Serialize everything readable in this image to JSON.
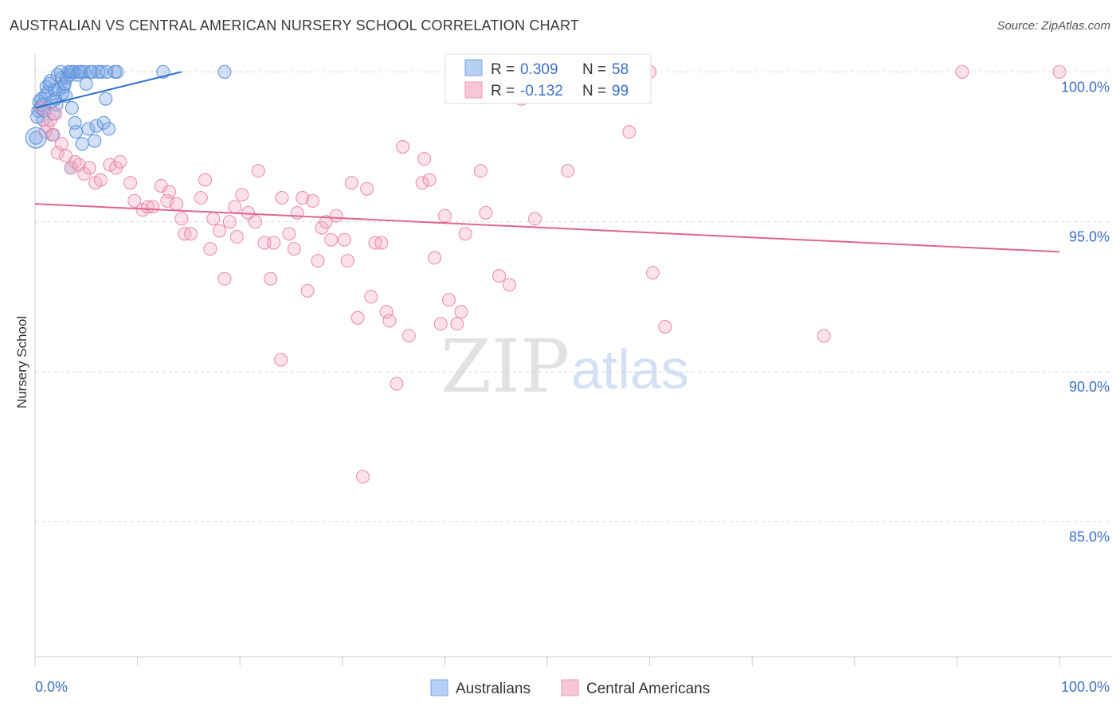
{
  "title": "AUSTRALIAN VS CENTRAL AMERICAN NURSERY SCHOOL CORRELATION CHART",
  "source": "Source: ZipAtlas.com",
  "watermark": {
    "zip": "ZIP",
    "atlas": "atlas"
  },
  "legend_box": {
    "rows": [
      {
        "r_label": "R = ",
        "r_value": "0.309",
        "n_label": "N = ",
        "n_value": "58"
      },
      {
        "r_label": "R = ",
        "r_value": "-0.132",
        "n_label": "N = ",
        "n_value": "99"
      }
    ]
  },
  "chart_data": {
    "type": "scatter",
    "title": "AUSTRALIAN VS CENTRAL AMERICAN NURSERY SCHOOL CORRELATION CHART",
    "xlabel": "",
    "ylabel": "Nursery School",
    "xlim": [
      0,
      100
    ],
    "ylim": [
      80.5,
      100.3
    ],
    "x_tick_labels": [
      {
        "value": 0,
        "label": "0.0%"
      },
      {
        "value": 100,
        "label": "100.0%"
      }
    ],
    "y_tick_labels": [
      {
        "value": 100,
        "label": "100.0%"
      },
      {
        "value": 95,
        "label": "95.0%"
      },
      {
        "value": 90,
        "label": "90.0%"
      },
      {
        "value": 85,
        "label": "85.0%"
      }
    ],
    "grid": true,
    "legend_position": "bottom-center",
    "series": [
      {
        "name": "Australians",
        "color": "#7aa6e6",
        "stroke": "#5b8fd9",
        "trend_color": "#2a6dd0",
        "trend": {
          "x": [
            0,
            14.3
          ],
          "y": [
            98.8,
            100
          ]
        },
        "points": [
          [
            0.1,
            97.8
          ],
          [
            0.2,
            98.5
          ],
          [
            0.3,
            98.7
          ],
          [
            0.4,
            99.0
          ],
          [
            0.5,
            98.8
          ],
          [
            0.6,
            99.1
          ],
          [
            0.7,
            98.9
          ],
          [
            0.8,
            98.4
          ],
          [
            0.9,
            98.7
          ],
          [
            1.0,
            99.2
          ],
          [
            1.1,
            99.5
          ],
          [
            1.2,
            99.3
          ],
          [
            1.4,
            99.6
          ],
          [
            1.5,
            99.7
          ],
          [
            1.6,
            99.0
          ],
          [
            1.7,
            97.9
          ],
          [
            1.8,
            98.6
          ],
          [
            1.9,
            99.4
          ],
          [
            2.0,
            99.1
          ],
          [
            2.1,
            98.9
          ],
          [
            2.2,
            99.9
          ],
          [
            2.3,
            99.4
          ],
          [
            2.5,
            100.0
          ],
          [
            2.6,
            99.8
          ],
          [
            2.7,
            99.3
          ],
          [
            2.8,
            99.5
          ],
          [
            2.9,
            99.6
          ],
          [
            3.0,
            99.2
          ],
          [
            3.1,
            99.8
          ],
          [
            3.3,
            100.0
          ],
          [
            3.4,
            99.9
          ],
          [
            3.5,
            100.0
          ],
          [
            3.6,
            98.8
          ],
          [
            3.8,
            100.0
          ],
          [
            3.9,
            98.3
          ],
          [
            4.0,
            98.0
          ],
          [
            4.1,
            99.9
          ],
          [
            4.3,
            100.0
          ],
          [
            4.5,
            100.0
          ],
          [
            4.6,
            97.6
          ],
          [
            4.8,
            100.0
          ],
          [
            5.0,
            99.6
          ],
          [
            5.2,
            98.1
          ],
          [
            5.4,
            100.0
          ],
          [
            5.6,
            100.0
          ],
          [
            5.8,
            97.7
          ],
          [
            6.0,
            98.2
          ],
          [
            6.2,
            100.0
          ],
          [
            6.5,
            100.0
          ],
          [
            6.7,
            98.3
          ],
          [
            6.9,
            99.1
          ],
          [
            7.0,
            100.0
          ],
          [
            7.2,
            98.1
          ],
          [
            7.8,
            100.0
          ],
          [
            8.0,
            100.0
          ],
          [
            3.5,
            96.8
          ],
          [
            12.5,
            100.0
          ],
          [
            18.5,
            100.0
          ]
        ]
      },
      {
        "name": "Central Americans",
        "color": "#f4a9c0",
        "stroke": "#e98aa9",
        "trend_color": "#e0658e",
        "trend": {
          "x": [
            0,
            100
          ],
          "y": [
            95.6,
            94.0
          ]
        },
        "points": [
          [
            0.7,
            98.8
          ],
          [
            1.2,
            98.2
          ],
          [
            1.5,
            98.4
          ],
          [
            1.8,
            97.9
          ],
          [
            2.2,
            97.3
          ],
          [
            2.6,
            97.6
          ],
          [
            3.0,
            97.2
          ],
          [
            3.5,
            96.8
          ],
          [
            3.9,
            97.0
          ],
          [
            4.3,
            96.9
          ],
          [
            4.8,
            96.6
          ],
          [
            5.3,
            96.8
          ],
          [
            5.9,
            96.3
          ],
          [
            6.4,
            96.4
          ],
          [
            7.3,
            96.9
          ],
          [
            7.9,
            96.8
          ],
          [
            8.3,
            97.0
          ],
          [
            9.3,
            96.3
          ],
          [
            9.7,
            95.7
          ],
          [
            10.5,
            95.4
          ],
          [
            11.0,
            95.5
          ],
          [
            11.5,
            95.5
          ],
          [
            12.3,
            96.2
          ],
          [
            12.9,
            95.7
          ],
          [
            13.1,
            96.0
          ],
          [
            13.8,
            95.6
          ],
          [
            14.3,
            95.1
          ],
          [
            14.6,
            94.6
          ],
          [
            15.2,
            94.6
          ],
          [
            16.2,
            95.8
          ],
          [
            16.6,
            96.4
          ],
          [
            17.1,
            94.1
          ],
          [
            17.4,
            95.1
          ],
          [
            18.0,
            94.7
          ],
          [
            18.5,
            93.1
          ],
          [
            19.0,
            95.0
          ],
          [
            19.5,
            95.5
          ],
          [
            19.7,
            94.5
          ],
          [
            20.2,
            95.9
          ],
          [
            20.8,
            95.3
          ],
          [
            21.5,
            95.0
          ],
          [
            21.8,
            96.7
          ],
          [
            22.4,
            94.3
          ],
          [
            23.0,
            93.1
          ],
          [
            23.3,
            94.3
          ],
          [
            24.1,
            95.8
          ],
          [
            24.8,
            94.6
          ],
          [
            25.3,
            94.1
          ],
          [
            25.6,
            95.3
          ],
          [
            26.1,
            95.8
          ],
          [
            26.6,
            92.7
          ],
          [
            27.1,
            95.7
          ],
          [
            27.6,
            93.7
          ],
          [
            28.0,
            94.8
          ],
          [
            28.4,
            95.0
          ],
          [
            28.9,
            94.4
          ],
          [
            29.4,
            95.2
          ],
          [
            30.2,
            94.4
          ],
          [
            30.5,
            93.7
          ],
          [
            30.9,
            96.3
          ],
          [
            31.5,
            91.8
          ],
          [
            32.4,
            96.1
          ],
          [
            32.8,
            92.5
          ],
          [
            33.2,
            94.3
          ],
          [
            33.8,
            94.3
          ],
          [
            34.3,
            92.0
          ],
          [
            34.6,
            91.7
          ],
          [
            35.3,
            89.6
          ],
          [
            35.9,
            97.5
          ],
          [
            36.5,
            91.2
          ],
          [
            37.8,
            96.3
          ],
          [
            38.0,
            97.1
          ],
          [
            38.5,
            96.4
          ],
          [
            39.0,
            93.8
          ],
          [
            39.6,
            91.6
          ],
          [
            40.0,
            95.2
          ],
          [
            40.4,
            92.4
          ],
          [
            41.2,
            91.6
          ],
          [
            41.6,
            92.0
          ],
          [
            42.0,
            94.6
          ],
          [
            43.5,
            96.7
          ],
          [
            44.0,
            95.3
          ],
          [
            45.3,
            93.2
          ],
          [
            46.3,
            92.9
          ],
          [
            47.5,
            99.1
          ],
          [
            48.0,
            100.0
          ],
          [
            48.8,
            95.1
          ],
          [
            52.0,
            96.7
          ],
          [
            58.0,
            98.0
          ],
          [
            60.0,
            100.0
          ],
          [
            60.3,
            93.3
          ],
          [
            61.5,
            91.5
          ],
          [
            77.0,
            91.2
          ],
          [
            90.5,
            100.0
          ],
          [
            100.0,
            100.0
          ],
          [
            32.0,
            86.5
          ],
          [
            24.0,
            90.4
          ],
          [
            1.0,
            98.0
          ],
          [
            2.0,
            98.6
          ]
        ]
      }
    ]
  }
}
